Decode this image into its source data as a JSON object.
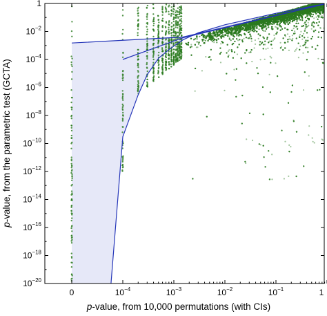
{
  "chart_data": {
    "type": "scatter",
    "title": "",
    "xlabel": {
      "italic": "p",
      "text": "-value, from 10,000 permutations (with CIs)"
    },
    "ylabel": {
      "italic": "p",
      "text": "-value, from the parametric test (GCTA)"
    },
    "x_scale": "permutation-log",
    "y_scale": "log",
    "xlim": [
      0,
      1
    ],
    "ylim": [
      1e-20,
      1
    ],
    "x_ticks": [
      {
        "value": 0,
        "base": "0",
        "exp": ""
      },
      {
        "value": 0.0001,
        "base": "10",
        "exp": "−4"
      },
      {
        "value": 0.001,
        "base": "10",
        "exp": "−3"
      },
      {
        "value": 0.01,
        "base": "10",
        "exp": "−2"
      },
      {
        "value": 0.1,
        "base": "10",
        "exp": "−1"
      },
      {
        "value": 1,
        "base": "1",
        "exp": ""
      }
    ],
    "y_ticks": [
      {
        "value": 1,
        "base": "1",
        "exp": ""
      },
      {
        "value": 0.01,
        "base": "10",
        "exp": "−2"
      },
      {
        "value": 0.0001,
        "base": "10",
        "exp": "−4"
      },
      {
        "value": 1e-06,
        "base": "10",
        "exp": "−6"
      },
      {
        "value": 1e-08,
        "base": "10",
        "exp": "−8"
      },
      {
        "value": 1e-10,
        "base": "10",
        "exp": "−10"
      },
      {
        "value": 1e-12,
        "base": "10",
        "exp": "−12"
      },
      {
        "value": 1e-14,
        "base": "10",
        "exp": "−14"
      },
      {
        "value": 1e-16,
        "base": "10",
        "exp": "−16"
      },
      {
        "value": 1e-18,
        "base": "10",
        "exp": "−18"
      },
      {
        "value": 1e-20,
        "base": "10",
        "exp": "−20"
      }
    ],
    "ci_band": {
      "upper": [
        [
          0,
          0.0015
        ],
        [
          0.0015,
          0.004
        ],
        [
          1,
          1
        ]
      ],
      "lower": [
        [
          5e-05,
          1e-20
        ],
        [
          0.0001,
          3e-10
        ],
        [
          0.0002,
          3e-07
        ],
        [
          0.0003,
          8e-06
        ],
        [
          0.0005,
          0.00012
        ],
        [
          0.0008,
          0.0005
        ],
        [
          0.0015,
          0.0025
        ],
        [
          0.003,
          0.008
        ],
        [
          0.01,
          0.03
        ],
        [
          0.1,
          0.2
        ],
        [
          1,
          1
        ]
      ],
      "mid": [
        [
          0.0001,
          0.0001
        ],
        [
          0.0015,
          0.0035
        ],
        [
          1,
          1
        ]
      ]
    },
    "points": {
      "n": 9000,
      "cloud_start": 0.0015,
      "permutation_columns": [
        0,
        0.0001,
        0.0002,
        0.0003,
        0.0004,
        0.0005,
        0.0006,
        0.0007,
        0.0008,
        0.0009,
        0.001,
        0.0011,
        0.0012,
        0.0013,
        0.0014
      ]
    },
    "colors": {
      "points": "#2b7a1f",
      "line": "#2435b8",
      "band": "#e6e8f8",
      "axis": "#000000"
    },
    "grid": false,
    "legend": "none"
  }
}
